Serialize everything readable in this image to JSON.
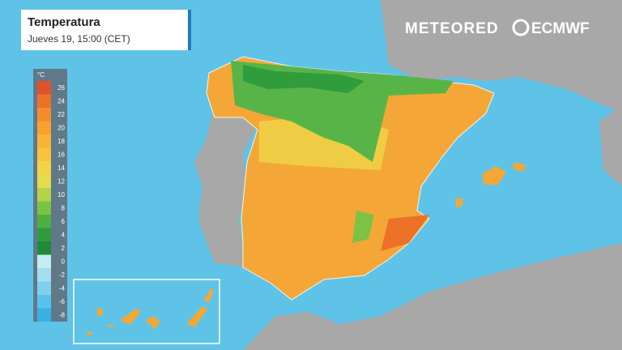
{
  "header": {
    "title": "Temperatura",
    "subtitle": "Jueves 19, 15:00 (CET)"
  },
  "brand": {
    "meteored": "METEORED",
    "ecmwf": "ECMWF"
  },
  "legend": {
    "unit": "°C",
    "ticks": [
      26,
      24,
      22,
      20,
      18,
      16,
      14,
      12,
      10,
      8,
      6,
      4,
      2,
      0,
      -2,
      -4,
      -6,
      -8
    ],
    "colors": [
      "#e4502a",
      "#ee7128",
      "#f48c2c",
      "#f7a130",
      "#f8b436",
      "#f6c43e",
      "#f2d348",
      "#e3dc4c",
      "#b4d24a",
      "#7cc245",
      "#4db040",
      "#2f9d3c",
      "#1f8a3a",
      "#c4ecf2",
      "#a2def0",
      "#7dd0ee",
      "#58c1ec",
      "#38b0e6"
    ]
  }
}
